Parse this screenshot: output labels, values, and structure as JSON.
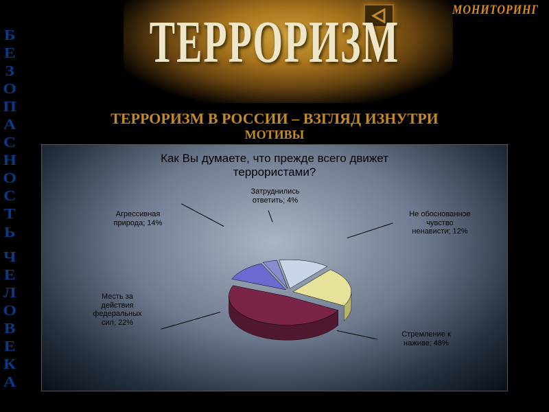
{
  "vertical_left": {
    "letters": [
      "Б",
      "Е",
      "З",
      "О",
      "П",
      "А",
      "С",
      "Н",
      "О",
      "С",
      "Т",
      "Ь",
      " ",
      "Ч",
      "Е",
      "Л",
      "О",
      "В",
      "Е",
      "К",
      "А"
    ],
    "color": "#0b3a84",
    "fontsize": 21
  },
  "monitoring_label": "МОНИТОРИНГ",
  "main_title": {
    "text": "ТЕРРОРИЗМ",
    "fontsize": 56,
    "color": "#efe6c9"
  },
  "back_arrow_color": "#c78a2a",
  "subtitle": {
    "line1": "ТЕРРОРИЗМ В РОССИИ – ВЗГЛЯД ИЗНУТРИ",
    "line2": "МОТИВЫ",
    "fontsize_line1": 22,
    "fontsize_line2": 18,
    "color": "#c38a28"
  },
  "chart": {
    "type": "pie-3d-exploded",
    "title": "Как Вы думаете, что прежде всего движет\nтеррористами?",
    "title_fontsize": 17,
    "panel_bg_center": "#aab5c4",
    "panel_bg_edge": "#0a0f16",
    "label_fontsize": 11,
    "label_color": "#000000",
    "slices": [
      {
        "label": "Затруднились\nответить; 4%",
        "value": 4,
        "color": "#8a8ad0",
        "side": "#5c5ca0"
      },
      {
        "label": "Агрессивная\nприрода; 14%",
        "value": 14,
        "color": "#c9d6e7",
        "side": "#9aa7b8"
      },
      {
        "label": "Месть за\nдействия\nфедеральных\nсил; 22%",
        "value": 22,
        "color": "#e7e29a",
        "side": "#b8b36a"
      },
      {
        "label": "Стремление к\nнаживе; 48%",
        "value": 48,
        "color": "#7a2448",
        "side": "#4f1730"
      },
      {
        "label": "Не обоснованное\nчувство\nненависти; 12%",
        "value": 12,
        "color": "#6a6ad0",
        "side": "#4a4a9a"
      }
    ]
  }
}
